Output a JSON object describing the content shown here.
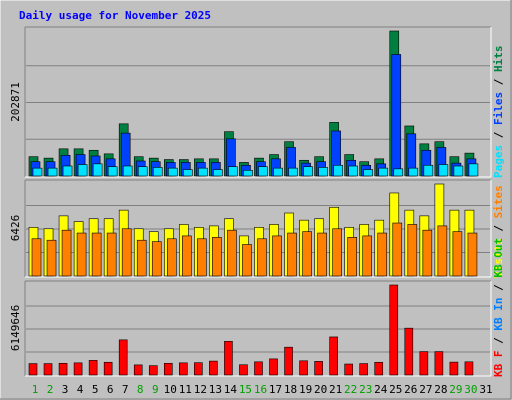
{
  "chart_data": [
    {
      "type": "bar",
      "title": "Daily usage for November 2025",
      "categories": [
        "1",
        "2",
        "3",
        "4",
        "5",
        "6",
        "7",
        "8",
        "9",
        "10",
        "11",
        "12",
        "13",
        "14",
        "15",
        "16",
        "17",
        "18",
        "19",
        "20",
        "21",
        "22",
        "23",
        "24",
        "25",
        "26",
        "27",
        "28",
        "29",
        "30",
        "31"
      ],
      "weekend_days": [
        "1",
        "2",
        "8",
        "9",
        "15",
        "16",
        "22",
        "23",
        "29",
        "30"
      ],
      "y_max_label": "202871",
      "legend": [
        "Pages",
        "/",
        "Files",
        "/",
        "Hits"
      ],
      "series": [
        {
          "name": "Hits",
          "color": "#008040",
          "values": [
            27000,
            25000,
            38000,
            38000,
            36000,
            31000,
            73000,
            27000,
            25000,
            23000,
            23000,
            24000,
            24000,
            62000,
            19000,
            25000,
            30000,
            48000,
            22000,
            27000,
            75000,
            30000,
            20000,
            24000,
            202871,
            70000,
            45000,
            48000,
            27000,
            32000,
            0
          ]
        },
        {
          "name": "Files",
          "color": "#0040ff",
          "values": [
            20000,
            20000,
            29000,
            30000,
            28000,
            24000,
            60000,
            21000,
            20000,
            19000,
            19000,
            19000,
            19000,
            52000,
            15000,
            20000,
            24000,
            40000,
            18000,
            20000,
            63000,
            22000,
            15000,
            17000,
            170000,
            59000,
            36000,
            40000,
            18000,
            24000,
            0
          ]
        },
        {
          "name": "Pages",
          "color": "#00e0ff",
          "values": [
            11000,
            11000,
            14000,
            16000,
            17000,
            13000,
            14000,
            13000,
            12000,
            11000,
            9000,
            11000,
            9000,
            13000,
            8000,
            13000,
            11000,
            11000,
            13000,
            12000,
            15000,
            14000,
            9000,
            11000,
            10000,
            11000,
            15000,
            16000,
            14000,
            17000,
            0
          ]
        }
      ]
    },
    {
      "type": "bar",
      "y_max_label": "6426",
      "legend": [
        "Visits",
        "/",
        "Sites"
      ],
      "series": [
        {
          "name": "Visits",
          "color": "#ffff00",
          "values": [
            3400,
            3300,
            4200,
            3800,
            4000,
            4000,
            4600,
            3300,
            3100,
            3300,
            3600,
            3400,
            3500,
            4000,
            2800,
            3400,
            3600,
            4400,
            3900,
            4000,
            4800,
            3400,
            3600,
            3900,
            5800,
            4600,
            4200,
            6426,
            4600,
            4600,
            0
          ]
        },
        {
          "name": "Sites",
          "color": "#ff8000",
          "values": [
            2600,
            2500,
            3200,
            3000,
            3000,
            3000,
            3300,
            2500,
            2400,
            2600,
            2800,
            2600,
            2700,
            3200,
            2200,
            2600,
            2800,
            3000,
            3100,
            3000,
            3300,
            2700,
            2800,
            3000,
            3700,
            3600,
            3200,
            3500,
            3100,
            3000,
            0
          ]
        }
      ]
    },
    {
      "type": "bar",
      "y_max_label": "6149646",
      "legend": [
        "KB F",
        "/",
        "KB In",
        "/",
        "KB Out"
      ],
      "series": [
        {
          "name": "KB F",
          "color": "#ff0000",
          "values": [
            780000,
            780000,
            800000,
            830000,
            1000000,
            870000,
            2400000,
            690000,
            640000,
            800000,
            830000,
            840000,
            950000,
            2300000,
            700000,
            900000,
            1100000,
            1900000,
            970000,
            930000,
            2600000,
            750000,
            780000,
            870000,
            6149646,
            3200000,
            1600000,
            1600000,
            880000,
            900000,
            0
          ]
        }
      ]
    }
  ]
}
